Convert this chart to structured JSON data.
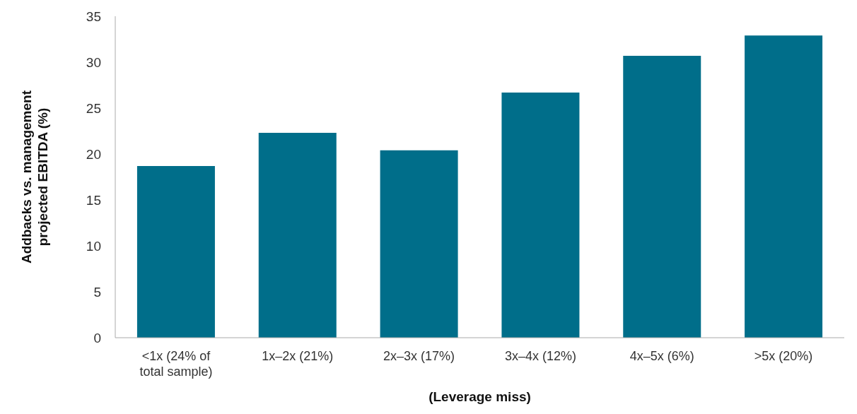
{
  "chart_data": {
    "type": "bar",
    "xlabel": "(Leverage miss)",
    "ylabel": "Addbacks vs. management projected EBITDA (%)",
    "categories": [
      "<1x (24% of total sample)",
      "1x–2x (21%)",
      "2x–3x (17%)",
      "3x–4x (12%)",
      "4x–5x (6%)",
      ">5x (20%)"
    ],
    "values": [
      18.7,
      22.3,
      20.4,
      26.7,
      30.7,
      32.9
    ],
    "color": "#006e8a",
    "ylim": [
      0,
      35
    ],
    "yticks": [
      0,
      5,
      10,
      15,
      20,
      25,
      30,
      35
    ],
    "grid": false
  }
}
